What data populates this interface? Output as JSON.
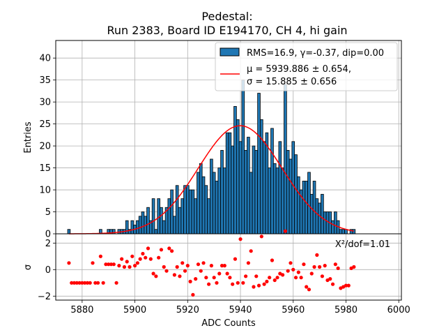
{
  "chart_data": [
    {
      "type": "bar",
      "title": "Pedestal:\nRun 2383, Board ID E194170, CH 4, hi gain",
      "title_lines": [
        "Pedestal:",
        "Run 2383, Board ID E194170, CH 4, hi gain"
      ],
      "ylabel": "Entries",
      "xlim": [
        5870,
        6001
      ],
      "ylim": [
        0,
        44
      ],
      "yticks": [
        0,
        5,
        10,
        15,
        20,
        25,
        30,
        35,
        40
      ],
      "grid": true,
      "legend_position": "top-right",
      "legend": [
        {
          "label": "RMS=16.9, γ=-0.37, dip=0.00",
          "kind": "bar",
          "color": "#1f77b4"
        },
        {
          "label_lines": [
            "μ = 5939.886 ± 0.654,",
            "σ = 15.885 ± 0.656"
          ],
          "kind": "line",
          "color": "#ff0000"
        }
      ],
      "bin_width": 1,
      "bar_color": "#1f77b4",
      "bins": [
        [
          5875,
          1
        ],
        [
          5880,
          0
        ],
        [
          5885,
          0
        ],
        [
          5886,
          0
        ],
        [
          5887,
          1
        ],
        [
          5888,
          0
        ],
        [
          5889,
          0
        ],
        [
          5890,
          1
        ],
        [
          5891,
          1
        ],
        [
          5892,
          1
        ],
        [
          5893,
          0
        ],
        [
          5894,
          1
        ],
        [
          5895,
          1
        ],
        [
          5896,
          1
        ],
        [
          5897,
          3
        ],
        [
          5898,
          1
        ],
        [
          5899,
          3
        ],
        [
          5900,
          2
        ],
        [
          5901,
          3
        ],
        [
          5902,
          4
        ],
        [
          5903,
          5
        ],
        [
          5904,
          4
        ],
        [
          5905,
          6
        ],
        [
          5906,
          3
        ],
        [
          5907,
          8
        ],
        [
          5908,
          1
        ],
        [
          5909,
          8
        ],
        [
          5910,
          6
        ],
        [
          5911,
          3
        ],
        [
          5912,
          6
        ],
        [
          5913,
          8
        ],
        [
          5914,
          10
        ],
        [
          5915,
          4
        ],
        [
          5916,
          11
        ],
        [
          5917,
          6
        ],
        [
          5918,
          8
        ],
        [
          5919,
          11
        ],
        [
          5920,
          11
        ],
        [
          5921,
          10
        ],
        [
          5922,
          10
        ],
        [
          5923,
          8
        ],
        [
          5924,
          14
        ],
        [
          5925,
          16
        ],
        [
          5926,
          13
        ],
        [
          5927,
          11
        ],
        [
          5928,
          8
        ],
        [
          5929,
          17
        ],
        [
          5930,
          14
        ],
        [
          5931,
          12
        ],
        [
          5932,
          15
        ],
        [
          5933,
          19
        ],
        [
          5934,
          15
        ],
        [
          5935,
          23
        ],
        [
          5936,
          23
        ],
        [
          5937,
          20
        ],
        [
          5938,
          29
        ],
        [
          5939,
          26
        ],
        [
          5940,
          21
        ],
        [
          5941,
          35
        ],
        [
          5942,
          19
        ],
        [
          5943,
          22
        ],
        [
          5944,
          14
        ],
        [
          5945,
          20
        ],
        [
          5946,
          19
        ],
        [
          5947,
          32
        ],
        [
          5948,
          26
        ],
        [
          5949,
          21
        ],
        [
          5950,
          23
        ],
        [
          5951,
          15
        ],
        [
          5952,
          24
        ],
        [
          5953,
          16
        ],
        [
          5954,
          15
        ],
        [
          5955,
          21
        ],
        [
          5956,
          15
        ],
        [
          5957,
          34
        ],
        [
          5958,
          19
        ],
        [
          5959,
          17
        ],
        [
          5960,
          21
        ],
        [
          5961,
          18
        ],
        [
          5962,
          13
        ],
        [
          5963,
          10
        ],
        [
          5964,
          12
        ],
        [
          5965,
          12
        ],
        [
          5966,
          14
        ],
        [
          5967,
          9
        ],
        [
          5968,
          12
        ],
        [
          5969,
          8
        ],
        [
          5970,
          7
        ],
        [
          5971,
          9
        ],
        [
          5972,
          5
        ],
        [
          5973,
          5
        ],
        [
          5974,
          5
        ],
        [
          5975,
          3
        ],
        [
          5976,
          5
        ],
        [
          5977,
          3
        ],
        [
          5978,
          1
        ],
        [
          5979,
          1
        ],
        [
          5980,
          1
        ],
        [
          5981,
          0
        ],
        [
          5982,
          1
        ],
        [
          5983,
          1
        ]
      ],
      "fit": {
        "mu": 5939.886,
        "sigma": 15.885,
        "amplitude": 24.6,
        "color": "#ff0000"
      }
    },
    {
      "type": "scatter",
      "xlabel": "ADC Counts",
      "ylabel": "σ",
      "xlim": [
        5870,
        6001
      ],
      "ylim": [
        -2.3,
        2.7
      ],
      "xticks": [
        5880,
        5900,
        5920,
        5940,
        5960,
        5980,
        6000
      ],
      "yticks": [
        -2,
        0,
        2
      ],
      "grid": true,
      "annotation": "X²/dof=1.01",
      "annotation_position": "top-right",
      "point_color": "#ff0000",
      "points": [
        [
          5875,
          0.5
        ],
        [
          5876,
          -1
        ],
        [
          5877,
          -1
        ],
        [
          5878,
          -1
        ],
        [
          5879,
          -1
        ],
        [
          5880,
          -1
        ],
        [
          5881,
          -1
        ],
        [
          5882,
          -1
        ],
        [
          5883,
          -1
        ],
        [
          5884,
          0.5
        ],
        [
          5885,
          -1
        ],
        [
          5886,
          -1
        ],
        [
          5887,
          1
        ],
        [
          5888,
          -1
        ],
        [
          5889,
          0.4
        ],
        [
          5890,
          0.4
        ],
        [
          5891,
          0.4
        ],
        [
          5892,
          0.4
        ],
        [
          5893,
          -1
        ],
        [
          5894,
          0.3
        ],
        [
          5895,
          0.8
        ],
        [
          5896,
          0.2
        ],
        [
          5897,
          0.6
        ],
        [
          5898,
          0.2
        ],
        [
          5899,
          1
        ],
        [
          5900,
          0.3
        ],
        [
          5901,
          0.5
        ],
        [
          5902,
          0.8
        ],
        [
          5903,
          1.2
        ],
        [
          5904,
          0.9
        ],
        [
          5905,
          1.6
        ],
        [
          5906,
          0.8
        ],
        [
          5907,
          -0.3
        ],
        [
          5908,
          -0.5
        ],
        [
          5909,
          0.9
        ],
        [
          5910,
          1.5
        ],
        [
          5911,
          0.2
        ],
        [
          5912,
          -0.1
        ],
        [
          5913,
          1.6
        ],
        [
          5914,
          1.4
        ],
        [
          5915,
          -0.4
        ],
        [
          5916,
          0.2
        ],
        [
          5917,
          -0.5
        ],
        [
          5918,
          0.5
        ],
        [
          5919,
          -0.1
        ],
        [
          5920,
          0.3
        ],
        [
          5921,
          -0.9
        ],
        [
          5922,
          -1.9
        ],
        [
          5923,
          -0.7
        ],
        [
          5924,
          0.4
        ],
        [
          5925,
          -0.1
        ],
        [
          5926,
          0.5
        ],
        [
          5927,
          -0.6
        ],
        [
          5928,
          -1.1
        ],
        [
          5929,
          0.3
        ],
        [
          5930,
          -0.6
        ],
        [
          5931,
          -1
        ],
        [
          5932,
          -0.3
        ],
        [
          5933,
          0.3
        ],
        [
          5934,
          0.3
        ],
        [
          5935,
          -0.3
        ],
        [
          5936,
          -0.6
        ],
        [
          5937,
          -1.1
        ],
        [
          5938,
          0.8
        ],
        [
          5939,
          -1
        ],
        [
          5940,
          2.3
        ],
        [
          5941,
          -1
        ],
        [
          5942,
          -0.5
        ],
        [
          5943,
          0.5
        ],
        [
          5944,
          1.4
        ],
        [
          5945,
          -1.3
        ],
        [
          5946,
          -0.5
        ],
        [
          5947,
          -1.2
        ],
        [
          5948,
          2.5
        ],
        [
          5949,
          -1.1
        ],
        [
          5950,
          -0.9
        ],
        [
          5951,
          -0.6
        ],
        [
          5952,
          0.7
        ],
        [
          5953,
          -0.8
        ],
        [
          5954,
          -0.6
        ],
        [
          5955,
          -0.3
        ],
        [
          5956,
          -0.4
        ],
        [
          5957,
          2.9
        ],
        [
          5958,
          -0.1
        ],
        [
          5959,
          0.5
        ],
        [
          5960,
          0
        ],
        [
          5961,
          -0.6
        ],
        [
          5962,
          -0.2
        ],
        [
          5963,
          -0.6
        ],
        [
          5964,
          0.4
        ],
        [
          5965,
          -1.3
        ],
        [
          5966,
          -1.5
        ],
        [
          5967,
          -0.3
        ],
        [
          5968,
          0.2
        ],
        [
          5969,
          1.1
        ],
        [
          5970,
          0.2
        ],
        [
          5971,
          -0.5
        ],
        [
          5972,
          0.3
        ],
        [
          5973,
          -0.8
        ],
        [
          5974,
          -0.7
        ],
        [
          5975,
          -1.1
        ],
        [
          5976,
          0.4
        ],
        [
          5977,
          0.1
        ],
        [
          5978,
          -1.4
        ],
        [
          5979,
          -1.3
        ],
        [
          5980,
          -1.2
        ],
        [
          5981,
          -1.2
        ],
        [
          5982,
          0.1
        ],
        [
          5983,
          0.2
        ]
      ]
    }
  ]
}
